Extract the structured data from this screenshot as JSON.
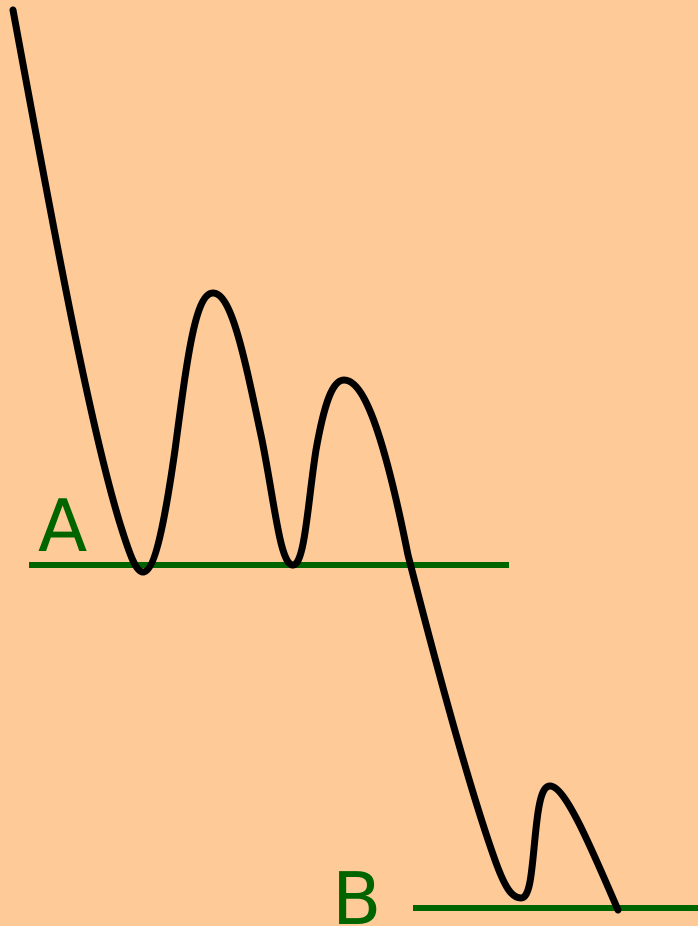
{
  "background_color": "#fecb98",
  "curve_color": "#000000",
  "level_color": "#006400",
  "levels": {
    "a": {
      "label": "A"
    },
    "b": {
      "label": "B"
    }
  }
}
